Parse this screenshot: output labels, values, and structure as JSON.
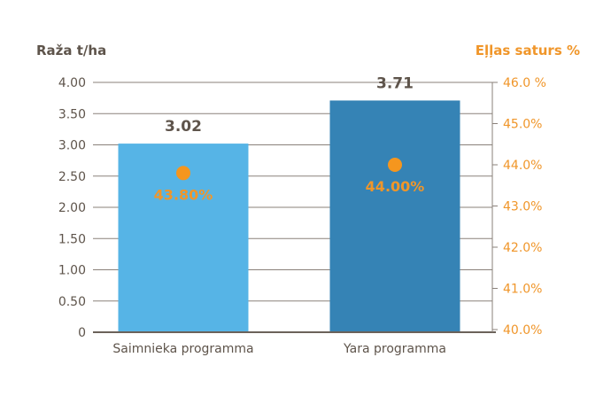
{
  "chart_data": {
    "type": "bar",
    "title": "",
    "ylabel": "Raža t/ha",
    "y2label": "Eļļas saturs %",
    "categories": [
      "Saimnieka programma",
      "Yara programma"
    ],
    "series": [
      {
        "axis": "left",
        "kind": "bar",
        "values": [
          3.02,
          3.71
        ],
        "value_labels": [
          "3.02",
          "3.71"
        ],
        "colors": [
          "#56b4e6",
          "#3583b5"
        ]
      },
      {
        "axis": "right",
        "kind": "point",
        "values": [
          43.8,
          44.0
        ],
        "value_labels": [
          "43.80%",
          "44.00%"
        ],
        "color": "#f5961e"
      }
    ],
    "ylim": [
      0,
      4
    ],
    "y2lim": [
      40,
      46
    ],
    "yticks": [
      "0",
      "0.50",
      "1.00",
      "1.50",
      "2.00",
      "2.50",
      "3.00",
      "3.50",
      "4.00"
    ],
    "y2ticks": [
      "40.0%",
      "41.0%",
      "42.0%",
      "43.0%",
      "44.0%",
      "45.0%",
      "46.0 %"
    ],
    "grid": true,
    "colors": {
      "text": "#5e544b",
      "accent": "#f0962a",
      "grid": "#8a817a"
    }
  }
}
